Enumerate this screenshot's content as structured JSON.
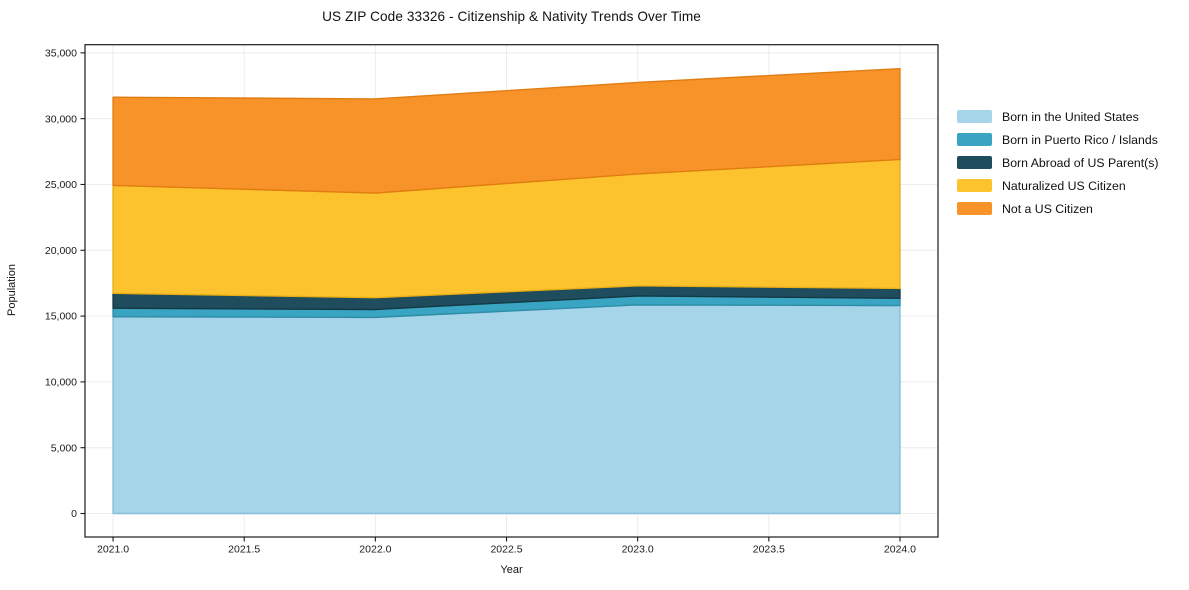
{
  "title": "US ZIP Code 33326 - Citizenship & Nativity Trends Over Time",
  "chart_data": {
    "type": "area",
    "stacked": true,
    "title": "US ZIP Code 33326 - Citizenship & Nativity Trends Over Time",
    "xlabel": "Year",
    "ylabel": "Population",
    "x": [
      2021,
      2022,
      2023,
      2024
    ],
    "series": [
      {
        "name": "Born in the United States",
        "color": "#A6D4E8",
        "edge": "#86BFDC",
        "values": [
          14950,
          14900,
          15850,
          15800
        ]
      },
      {
        "name": "Born in Puerto Rico / Islands",
        "color": "#39A5C2",
        "edge": "#2E8CA6",
        "values": [
          650,
          600,
          680,
          550
        ]
      },
      {
        "name": "Born Abroad of US Parent(s)",
        "color": "#1F4D5E",
        "edge": "#153845",
        "values": [
          1130,
          900,
          770,
          750
        ]
      },
      {
        "name": "Naturalized US Citizen",
        "color": "#FDC32E",
        "edge": "#EAAE15",
        "values": [
          8200,
          7950,
          8500,
          9800
        ]
      },
      {
        "name": "Not a US Citizen",
        "color": "#F79329",
        "edge": "#E07D12",
        "values": [
          6700,
          7150,
          6950,
          6900
        ]
      }
    ],
    "totals": [
      31630,
      31500,
      32750,
      33800
    ],
    "xlim": [
      2020.893,
      2024.145
    ],
    "ylim": [
      -1785,
      35620
    ],
    "xticks": [
      2021.0,
      2021.5,
      2022.0,
      2022.5,
      2023.0,
      2023.5,
      2024.0
    ],
    "xtick_labels": [
      "2021.0",
      "2021.5",
      "2022.0",
      "2022.5",
      "2023.0",
      "2023.5",
      "2024.0"
    ],
    "yticks": [
      0,
      5000,
      10000,
      15000,
      20000,
      25000,
      30000,
      35000
    ],
    "ytick_labels": [
      "0",
      "5,000",
      "10,000",
      "15,000",
      "20,000",
      "25,000",
      "30,000",
      "35,000"
    ],
    "grid": true,
    "grid_color": "#ececec",
    "spine_color": "#1a1a1a",
    "tick_text_color": "#1a1a1a",
    "background_color": "#ffffff",
    "legend_position": "right of plot, no frame"
  }
}
